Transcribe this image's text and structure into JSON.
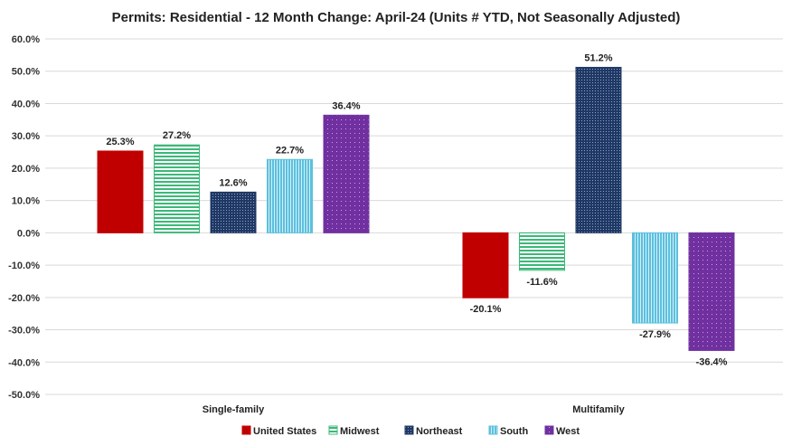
{
  "chart_data": {
    "type": "bar",
    "title": "Permits: Residential - 12 Month Change:  April-24 (Units # YTD, Not Seasonally Adjusted)",
    "categories": [
      "Single-family",
      "Multifamily"
    ],
    "series": [
      {
        "name": "United States",
        "values": [
          25.3,
          -20.1
        ],
        "color": "#C00000",
        "pattern": "solid"
      },
      {
        "name": "Midwest",
        "values": [
          27.2,
          -11.6
        ],
        "color": "#3CB878",
        "pattern": "horizontal-lines"
      },
      {
        "name": "Northeast",
        "values": [
          12.6,
          51.2
        ],
        "color": "#1F3864",
        "pattern": "dots"
      },
      {
        "name": "South",
        "values": [
          22.7,
          -27.9
        ],
        "color": "#5BC0DE",
        "pattern": "vertical-lines"
      },
      {
        "name": "West",
        "values": [
          36.4,
          -36.4
        ],
        "color": "#7030A0",
        "pattern": "sparse-dots"
      }
    ],
    "data_labels": [
      [
        "25.3%",
        "-20.1%"
      ],
      [
        "27.2%",
        "-11.6%"
      ],
      [
        "12.6%",
        "51.2%"
      ],
      [
        "22.7%",
        "-27.9%"
      ],
      [
        "36.4%",
        "-36.4%"
      ]
    ],
    "ylim": [
      -50,
      60
    ],
    "yticks": [
      "60.0%",
      "50.0%",
      "40.0%",
      "30.0%",
      "20.0%",
      "10.0%",
      "0.0%",
      "-10.0%",
      "-20.0%",
      "-30.0%",
      "-40.0%",
      "-50.0%"
    ],
    "grid": true,
    "legend": "bottom",
    "xlabel": "",
    "ylabel": ""
  }
}
